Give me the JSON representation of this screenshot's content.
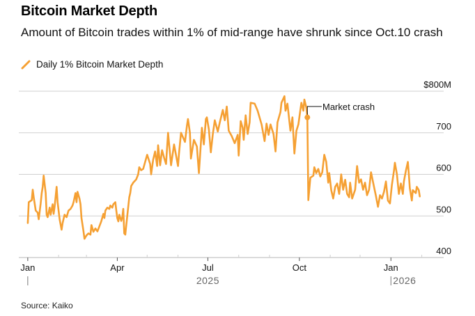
{
  "header": {
    "title": "Bitcoin Market Depth",
    "subtitle": "Amount of Bitcoin trades within 1% of mid-range have shrunk since Oct.10 crash"
  },
  "legend": [
    {
      "label": "Daily 1% Bitcoin Market Depth",
      "color": "#F5A033",
      "icon": "line-swatch-icon"
    }
  ],
  "footer": {
    "source": "Source: Kaiko"
  },
  "chart_data": {
    "type": "line",
    "title": "Bitcoin Market Depth",
    "subtitle": "Amount of Bitcoin trades within 1% of mid-range have shrunk since Oct.10 crash",
    "xlabel": "",
    "ylabel": "",
    "x_unit": "days since 2025-01-01",
    "xlim": [
      -9,
      418
    ],
    "ylim": [
      400,
      800
    ],
    "grid": true,
    "legend_position": "top-left",
    "y_ticks": [
      {
        "value": 800,
        "label": "$800M"
      },
      {
        "value": 700,
        "label": "700"
      },
      {
        "value": 600,
        "label": "600"
      },
      {
        "value": 500,
        "label": "500"
      },
      {
        "value": 400,
        "label": "400"
      }
    ],
    "x_ticks_major": [
      {
        "value": 0,
        "label": "Jan"
      },
      {
        "value": 90,
        "label": "Apr"
      },
      {
        "value": 181,
        "label": "Jul"
      },
      {
        "value": 273,
        "label": "Oct"
      },
      {
        "value": 365,
        "label": "Jan"
      }
    ],
    "x_ticks_minor": [
      31,
      59,
      120,
      151,
      212,
      243,
      304,
      334,
      396
    ],
    "year_labels": [
      {
        "value": 0,
        "label": "",
        "marker": true
      },
      {
        "value": 181,
        "label": "2025",
        "marker": false
      },
      {
        "value": 365,
        "label": "2026",
        "marker": true
      }
    ],
    "annotations": [
      {
        "x": 281,
        "y": 737,
        "label": "Market crash"
      }
    ],
    "series": [
      {
        "name": "Daily 1% Bitcoin Market Depth",
        "color": "#F5A033",
        "unit": "USD millions",
        "x": [
          0,
          1,
          4,
          5,
          6,
          8,
          10,
          11,
          13,
          14,
          15,
          16,
          18,
          19,
          20,
          22,
          23,
          25,
          26,
          27,
          29,
          30,
          32,
          34,
          35,
          37,
          39,
          41,
          43,
          45,
          46,
          48,
          49,
          50,
          52,
          53,
          54,
          56,
          57,
          59,
          61,
          63,
          64,
          66,
          68,
          70,
          72,
          74,
          76,
          77,
          78,
          80,
          82,
          83,
          85,
          86,
          88,
          89,
          90,
          91,
          92,
          94,
          95,
          96,
          97,
          98,
          99,
          102,
          103,
          104,
          106,
          109,
          111,
          112,
          114,
          116,
          118,
          120,
          123,
          124,
          126,
          128,
          130,
          131,
          133,
          135,
          137,
          139,
          141,
          144,
          147,
          151,
          152,
          154,
          158,
          160,
          161,
          163,
          164,
          167,
          170,
          172,
          175,
          177,
          179,
          180,
          182,
          184,
          186,
          188,
          191,
          193,
          196,
          198,
          200,
          202,
          205,
          208,
          211,
          212,
          214,
          216,
          217,
          219,
          220,
          221,
          223,
          224,
          228,
          231,
          235,
          238,
          240,
          242,
          244,
          247,
          249,
          251,
          254,
          255,
          258,
          259,
          261,
          264,
          266,
          268,
          270,
          272,
          275,
          277,
          278,
          280,
          281,
          282,
          284,
          287,
          288,
          290,
          292,
          294,
          296,
          298,
          300,
          302,
          303,
          305,
          307,
          309,
          311,
          313,
          315,
          317,
          319,
          321,
          323,
          324,
          326,
          329,
          331,
          333,
          335,
          337,
          339,
          341,
          343,
          345,
          348,
          350,
          352,
          354,
          356,
          358,
          360,
          362,
          364,
          366,
          368,
          369,
          371,
          373,
          375,
          377,
          378,
          380,
          382,
          383,
          384,
          386,
          387,
          390,
          391,
          393,
          394
        ],
        "values": [
          483,
          533,
          538,
          563,
          545,
          513,
          508,
          492,
          530,
          555,
          570,
          597,
          555,
          503,
          497,
          520,
          503,
          528,
          505,
          522,
          570,
          533,
          492,
          467,
          483,
          503,
          497,
          513,
          517,
          525,
          533,
          555,
          533,
          558,
          542,
          528,
          495,
          463,
          445,
          453,
          458,
          455,
          478,
          462,
          470,
          463,
          475,
          488,
          505,
          495,
          513,
          520,
          517,
          525,
          520,
          528,
          533,
          513,
          495,
          487,
          503,
          488,
          497,
          517,
          458,
          455,
          478,
          545,
          555,
          572,
          580,
          588,
          600,
          617,
          610,
          613,
          630,
          647,
          625,
          600,
          635,
          655,
          620,
          670,
          622,
          658,
          640,
          625,
          700,
          622,
          672,
          620,
          650,
          700,
          678,
          717,
          733,
          700,
          638,
          683,
          667,
          603,
          712,
          672,
          733,
          737,
          708,
          653,
          697,
          730,
          703,
          725,
          755,
          730,
          763,
          705,
          692,
          675,
          695,
          645,
          728,
          712,
          683,
          742,
          720,
          697,
          725,
          772,
          770,
          753,
          720,
          680,
          722,
          695,
          720,
          697,
          655,
          725,
          750,
          772,
          788,
          753,
          770,
          705,
          737,
          650,
          705,
          720,
          772,
          753,
          780,
          760,
          737,
          538,
          592,
          597,
          617,
          603,
          613,
          595,
          605,
          647,
          630,
          580,
          603,
          562,
          542,
          570,
          578,
          553,
          600,
          563,
          587,
          553,
          545,
          580,
          542,
          563,
          620,
          580,
          588,
          563,
          580,
          550,
          563,
          605,
          570,
          547,
          522,
          550,
          542,
          558,
          583,
          537,
          530,
          575,
          608,
          628,
          600,
          553,
          578,
          553,
          583,
          608,
          630,
          600,
          567,
          537,
          562,
          555,
          570,
          562,
          547
        ]
      }
    ]
  }
}
